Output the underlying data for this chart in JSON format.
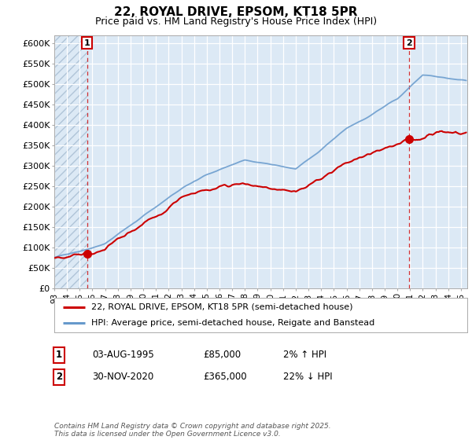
{
  "title": "22, ROYAL DRIVE, EPSOM, KT18 5PR",
  "subtitle": "Price paid vs. HM Land Registry's House Price Index (HPI)",
  "ylabel_ticks": [
    "£0",
    "£50K",
    "£100K",
    "£150K",
    "£200K",
    "£250K",
    "£300K",
    "£350K",
    "£400K",
    "£450K",
    "£500K",
    "£550K",
    "£600K"
  ],
  "ytick_values": [
    0,
    50000,
    100000,
    150000,
    200000,
    250000,
    300000,
    350000,
    400000,
    450000,
    500000,
    550000,
    600000
  ],
  "ylim": [
    0,
    620000
  ],
  "xlim_start": 1993.0,
  "xlim_end": 2025.5,
  "point1_x": 1995.58,
  "point1_y": 85000,
  "point1_label": "1",
  "point2_x": 2020.917,
  "point2_y": 365000,
  "point2_label": "2",
  "legend_line1": "22, ROYAL DRIVE, EPSOM, KT18 5PR (semi-detached house)",
  "legend_line2": "HPI: Average price, semi-detached house, Reigate and Banstead",
  "red_line_color": "#cc0000",
  "blue_line_color": "#6699cc",
  "bg_plot_color": "#dce9f5",
  "grid_color": "#ffffff",
  "table_rows": [
    {
      "num": "1",
      "date": "03-AUG-1995",
      "price": "£85,000",
      "hpi": "2% ↑ HPI"
    },
    {
      "num": "2",
      "date": "30-NOV-2020",
      "price": "£365,000",
      "hpi": "22% ↓ HPI"
    }
  ],
  "footer": "Contains HM Land Registry data © Crown copyright and database right 2025.\nThis data is licensed under the Open Government Licence v3.0."
}
